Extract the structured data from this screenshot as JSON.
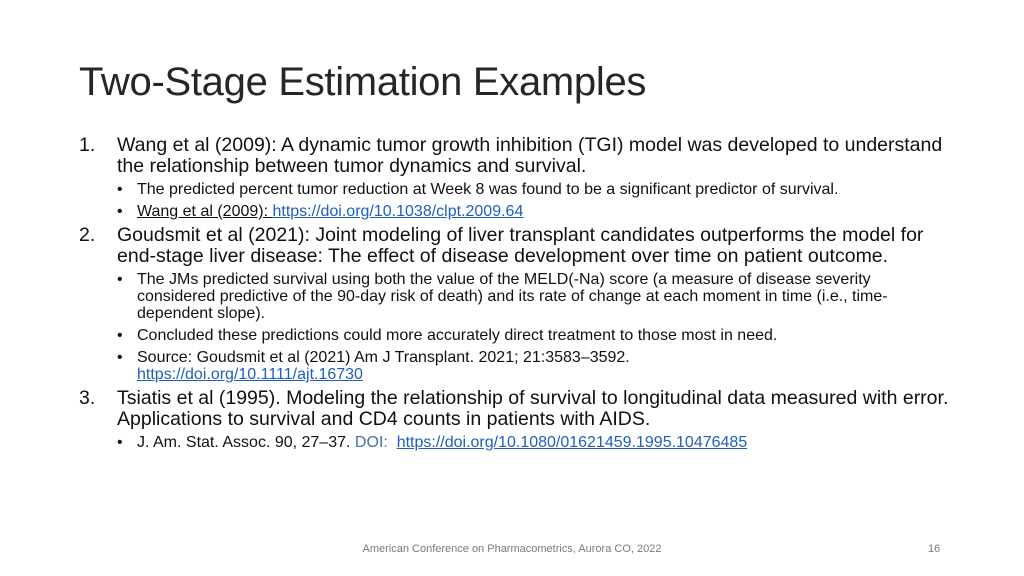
{
  "slide": {
    "title": "Two-Stage Estimation Examples",
    "items": [
      {
        "number": "1.",
        "text": "Wang et al (2009): A dynamic tumor growth inhibition (TGI) model was developed to understand the relationship between tumor dynamics and survival.",
        "subs": [
          {
            "bullet": "•",
            "text": "The predicted percent tumor reduction at Week 8 was found to be a significant predictor of survival."
          },
          {
            "bullet": "•",
            "prefix": "Wang et al (2009): ",
            "link": "https://doi.org/10.1038/clpt.2009.64"
          }
        ]
      },
      {
        "number": "2.",
        "text": "Goudsmit et al (2021): Joint modeling of liver transplant candidates outperforms the model for end-stage liver disease: The effect of disease development over time on patient outcome.",
        "subs": [
          {
            "bullet": "•",
            "text": "The JMs predicted survival using both the value of the MELD(-Na) score (a measure of disease severity considered predictive of the 90-day risk of death) and its rate of change at each moment in time (i.e., time-dependent slope)."
          },
          {
            "bullet": "•",
            "text": "Concluded these predictions could more accurately direct treatment to those most in need."
          },
          {
            "bullet": "•",
            "text": "Source: Goudsmit et al (2021) Am J Transplant. 2021; 21:3583–3592.",
            "link": "https://doi.org/10.1111/ajt.16730"
          }
        ]
      },
      {
        "number": "3.",
        "text": "Tsiatis et al (1995). Modeling the relationship of survival to longitudinal data measured with error. Applications to survival and CD4 counts in patients with AIDS.",
        "subs": [
          {
            "bullet": "•",
            "text": "J. Am. Stat. Assoc. 90, 27–37. ",
            "doi_label": "DOI:",
            "link": "https://doi.org/10.1080/01621459.1995.10476485"
          }
        ]
      }
    ],
    "footer": "American Conference on Pharmacometrics, Aurora CO, 2022",
    "page_number": "16"
  }
}
